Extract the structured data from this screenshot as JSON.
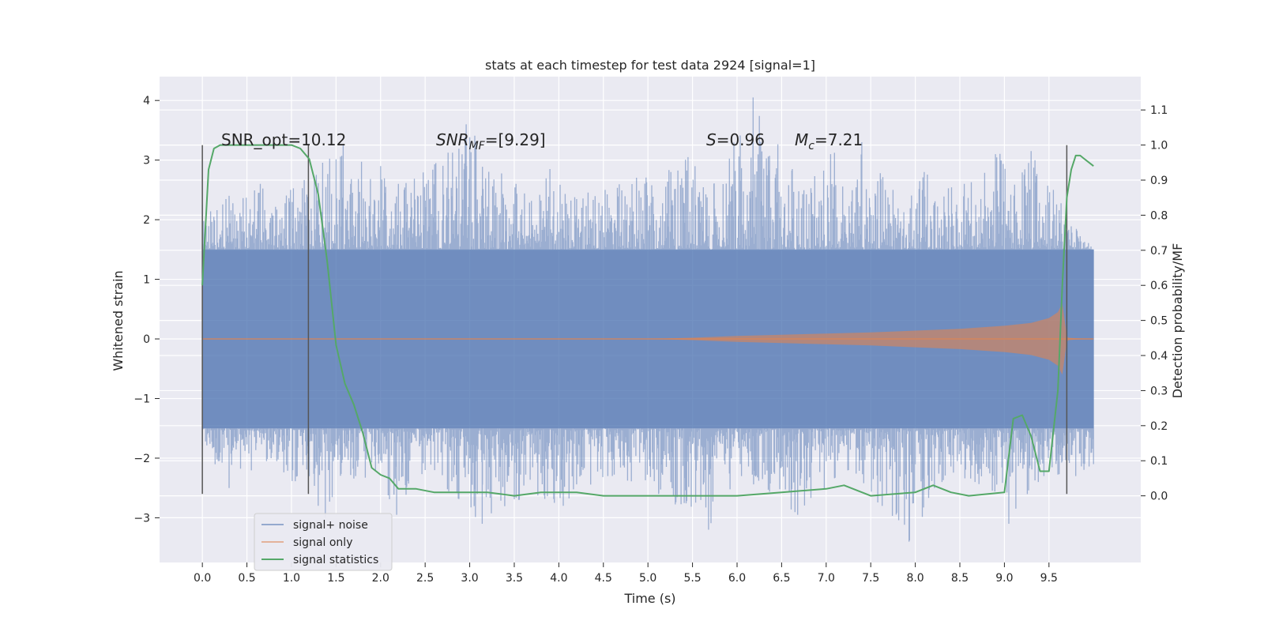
{
  "chart_data": {
    "type": "line",
    "title": "stats at each timestep for test data 2924 [signal=1]",
    "xlabel": "Time (s)",
    "ylabel": "Whitened strain",
    "y2label": "Detection probability/MF",
    "xlim": [
      -0.48,
      10.53
    ],
    "ylim": [
      -3.75,
      4.4
    ],
    "y2lim": [
      -0.19,
      1.195
    ],
    "x_ticks": [
      "0.0",
      "0.5",
      "1.0",
      "1.5",
      "2.0",
      "2.5",
      "3.0",
      "3.5",
      "4.0",
      "4.5",
      "5.0",
      "5.5",
      "6.0",
      "6.5",
      "7.0",
      "7.5",
      "8.0",
      "8.5",
      "9.0",
      "9.5"
    ],
    "y_ticks": [
      "4",
      "3",
      "2",
      "1",
      "0",
      "−1",
      "−2",
      "−3"
    ],
    "y2_ticks": [
      "1.1",
      "1.0",
      "0.9",
      "0.8",
      "0.7",
      "0.6",
      "0.5",
      "0.4",
      "0.3",
      "0.2",
      "0.1",
      "0.0"
    ],
    "grid": true,
    "legend_position": "lower-left",
    "annotations": {
      "snr_opt": "SNR_opt=10.12",
      "snr_mf_sym": "SNR",
      "snr_mf_sub": "MF",
      "snr_mf_val": "=[9.29]",
      "s_sym": "S",
      "s_val": "=0.96",
      "mc_sym": "M",
      "mc_sub": "c",
      "mc_val": "=7.21"
    },
    "vertical_lines": [
      {
        "x": 0.0,
        "y_range": [
          -2.6,
          3.25
        ]
      },
      {
        "x": 1.19,
        "y_range": [
          -2.6,
          3.25
        ]
      },
      {
        "x": 9.7,
        "y_range": [
          -2.6,
          3.25
        ]
      }
    ],
    "series": [
      {
        "name": "signal+ noise",
        "color": "#4c72b0",
        "kind": "noise-envelope",
        "x_range": [
          0.0,
          10.0
        ],
        "band": [
          -1.5,
          1.5
        ],
        "peaks": [
          [
            0.0,
            2.25
          ],
          [
            0.3,
            2.4
          ],
          [
            0.65,
            2.6
          ],
          [
            0.99,
            2.5
          ],
          [
            1.58,
            3.25
          ],
          [
            2.0,
            2.9
          ],
          [
            2.2,
            2.6
          ],
          [
            2.62,
            2.95
          ],
          [
            2.96,
            3.6
          ],
          [
            3.52,
            2.6
          ],
          [
            3.9,
            2.85
          ],
          [
            4.52,
            2.5
          ],
          [
            5.45,
            3.05
          ],
          [
            5.74,
            2.6
          ],
          [
            6.18,
            4.05
          ],
          [
            6.62,
            2.85
          ],
          [
            7.05,
            3.1
          ],
          [
            7.4,
            3.3
          ],
          [
            7.75,
            2.5
          ],
          [
            8.1,
            2.8
          ],
          [
            8.55,
            2.6
          ],
          [
            8.9,
            3.1
          ],
          [
            9.3,
            3.15
          ],
          [
            9.55,
            2.5
          ],
          [
            10.0,
            1.5
          ]
        ],
        "troughs": [
          [
            0.0,
            -1.8
          ],
          [
            0.3,
            -2.5
          ],
          [
            0.72,
            -2.05
          ],
          [
            1.3,
            -2.8
          ],
          [
            1.38,
            -3.0
          ],
          [
            1.72,
            -2.3
          ],
          [
            2.18,
            -2.95
          ],
          [
            2.5,
            -2.2
          ],
          [
            3.14,
            -3.1
          ],
          [
            3.55,
            -2.7
          ],
          [
            4.05,
            -2.8
          ],
          [
            4.55,
            -2.3
          ],
          [
            5.12,
            -2.6
          ],
          [
            5.68,
            -3.2
          ],
          [
            6.05,
            -2.3
          ],
          [
            6.68,
            -2.95
          ],
          [
            7.25,
            -2.2
          ],
          [
            7.93,
            -3.4
          ],
          [
            8.3,
            -2.4
          ],
          [
            8.67,
            -2.4
          ],
          [
            9.05,
            -3.1
          ],
          [
            9.38,
            -2.4
          ],
          [
            9.8,
            -2.3
          ],
          [
            10.0,
            -2.1
          ]
        ]
      },
      {
        "name": "signal only",
        "color": "#dd8452",
        "kind": "chirp-envelope",
        "x": [
          0.0,
          5.0,
          5.5,
          6.0,
          6.5,
          7.0,
          7.5,
          8.0,
          8.5,
          9.0,
          9.3,
          9.5,
          9.6,
          9.65,
          9.7,
          9.72,
          9.8,
          10.0
        ],
        "amplitude": [
          0.0,
          0.0,
          0.02,
          0.05,
          0.07,
          0.09,
          0.11,
          0.14,
          0.17,
          0.22,
          0.27,
          0.35,
          0.45,
          0.6,
          0.05,
          0.02,
          0.01,
          0.0
        ]
      },
      {
        "name": "signal statistics",
        "color": "#55a868",
        "axis": "right",
        "x": [
          0.0,
          0.07,
          0.13,
          0.2,
          0.3,
          0.5,
          0.8,
          1.0,
          1.1,
          1.2,
          1.3,
          1.4,
          1.5,
          1.6,
          1.7,
          1.8,
          1.9,
          2.0,
          2.1,
          2.2,
          2.4,
          2.6,
          2.8,
          3.0,
          3.2,
          3.5,
          3.8,
          4.0,
          4.2,
          4.5,
          5.0,
          5.5,
          6.0,
          6.5,
          7.0,
          7.2,
          7.5,
          8.0,
          8.2,
          8.4,
          8.6,
          9.0,
          9.1,
          9.2,
          9.3,
          9.4,
          9.5,
          9.6,
          9.65,
          9.7,
          9.75,
          9.8,
          9.85,
          9.9,
          9.95,
          10.0
        ],
        "values": [
          0.6,
          0.93,
          0.99,
          1.0,
          1.0,
          1.0,
          1.0,
          1.0,
          0.99,
          0.96,
          0.86,
          0.67,
          0.43,
          0.32,
          0.26,
          0.18,
          0.08,
          0.06,
          0.05,
          0.02,
          0.02,
          0.01,
          0.01,
          0.01,
          0.01,
          0.0,
          0.01,
          0.01,
          0.01,
          0.0,
          0.0,
          0.0,
          0.0,
          0.01,
          0.02,
          0.03,
          0.0,
          0.01,
          0.03,
          0.01,
          0.0,
          0.01,
          0.22,
          0.23,
          0.17,
          0.07,
          0.07,
          0.3,
          0.6,
          0.85,
          0.93,
          0.97,
          0.97,
          0.96,
          0.95,
          0.94
        ]
      }
    ]
  }
}
